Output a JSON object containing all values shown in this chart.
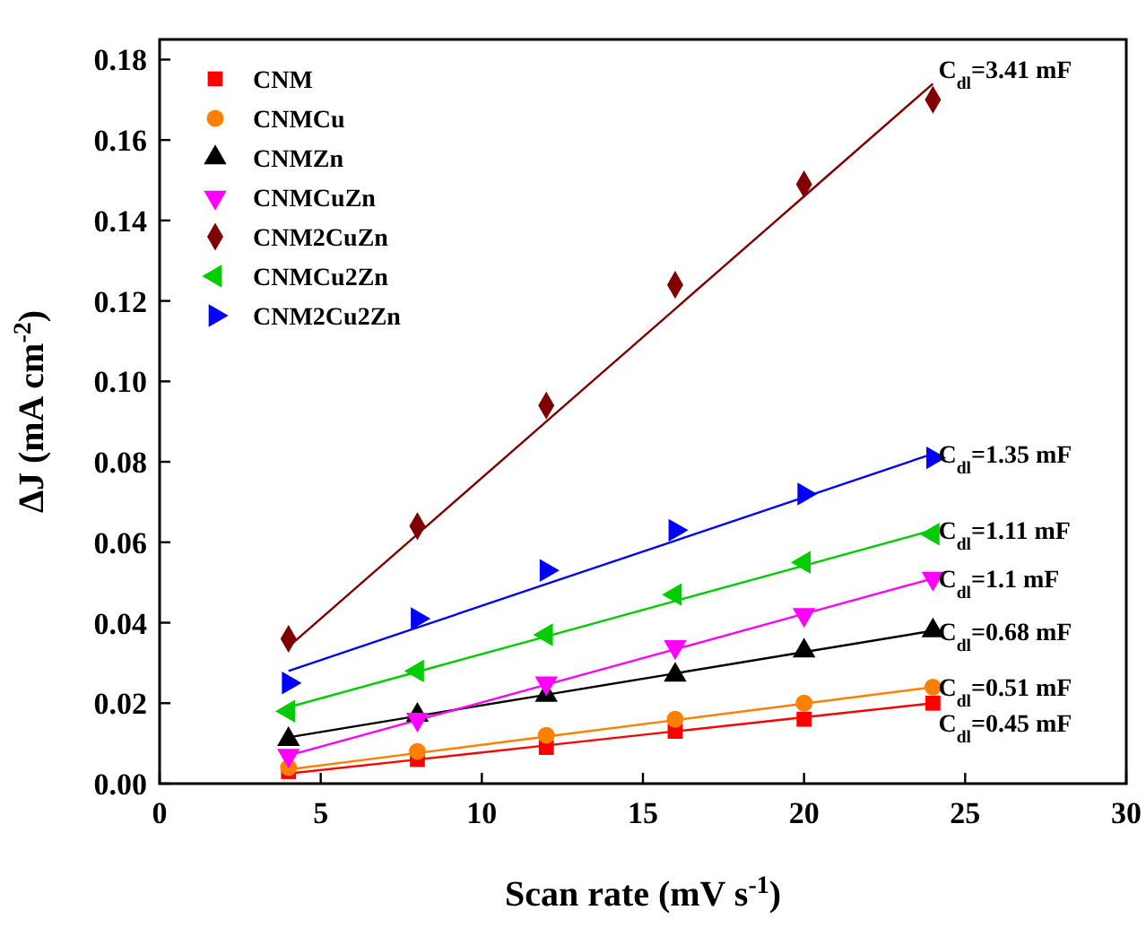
{
  "chart_data": {
    "type": "scatter",
    "xlabel": "Scan rate (mV s$^{-1}$)",
    "ylabel": "ΔJ (mA cm$^{-2}$)",
    "x": [
      4,
      8,
      12,
      16,
      20,
      24
    ],
    "xlim": [
      0,
      30
    ],
    "xticks": [
      0,
      5,
      10,
      15,
      20,
      25,
      30
    ],
    "ylim": [
      0,
      0.185
    ],
    "yticks": [
      {
        "value": 0,
        "label": "0.00"
      },
      {
        "value": 0.02,
        "label": "0.02"
      },
      {
        "value": 0.04,
        "label": "0.04"
      },
      {
        "value": 0.06,
        "label": "0.06"
      },
      {
        "value": 0.08,
        "label": "0.08"
      },
      {
        "value": 0.1,
        "label": "0.10"
      },
      {
        "value": 0.12,
        "label": "0.12"
      },
      {
        "value": 0.14,
        "label": "0.14"
      },
      {
        "value": 0.16,
        "label": "0.16"
      },
      {
        "value": 0.18,
        "label": "0.18"
      }
    ],
    "legend": "top left",
    "grid": false,
    "series": [
      {
        "name": "CNM",
        "color": "#ff0000",
        "marker": "square",
        "values": [
          0.003,
          0.006,
          0.009,
          0.013,
          0.016,
          0.02
        ]
      },
      {
        "name": "CNMCu",
        "color": "#ff8000",
        "marker": "circle",
        "values": [
          0.004,
          0.008,
          0.012,
          0.016,
          0.02,
          0.024
        ]
      },
      {
        "name": "CNMZn",
        "color": "#000000",
        "marker": "triangle",
        "values": [
          0.011,
          0.017,
          0.022,
          0.027,
          0.033,
          0.038
        ]
      },
      {
        "name": "CNMCuZn",
        "color": "#ff00ff",
        "marker": "triangle-down",
        "values": [
          0.007,
          0.016,
          0.025,
          0.034,
          0.042,
          0.051
        ]
      },
      {
        "name": "CNM2CuZn",
        "color": "#800000",
        "marker": "diamond",
        "values": [
          0.036,
          0.064,
          0.094,
          0.124,
          0.149,
          0.17
        ]
      },
      {
        "name": "CNMCu2Zn",
        "color": "#00cc00",
        "marker": "triangle-left",
        "values": [
          0.018,
          0.028,
          0.037,
          0.047,
          0.055,
          0.062
        ]
      },
      {
        "name": "CNM2Cu2Zn",
        "color": "#0000ff",
        "marker": "triangle-right",
        "values": [
          0.025,
          0.041,
          0.053,
          0.063,
          0.072,
          0.081
        ]
      },
      {
        "type": "line",
        "color": "#ff0000",
        "values": [
          0.0025,
          0.006,
          0.0095,
          0.013,
          0.0165,
          0.02
        ]
      },
      {
        "type": "line",
        "color": "#ff8000",
        "values": [
          0.0035,
          0.0076,
          0.0117,
          0.0158,
          0.0199,
          0.024
        ]
      },
      {
        "type": "line",
        "color": "#000000",
        "values": [
          0.0115,
          0.0168,
          0.0221,
          0.0274,
          0.0327,
          0.038
        ]
      },
      {
        "type": "line",
        "color": "#ff00ff",
        "values": [
          0.007,
          0.0158,
          0.0246,
          0.0334,
          0.0422,
          0.051
        ]
      },
      {
        "type": "line",
        "color": "#800000",
        "values": [
          0.034,
          0.062,
          0.09,
          0.118,
          0.146,
          0.174
        ]
      },
      {
        "type": "line",
        "color": "#00cc00",
        "values": [
          0.019,
          0.0278,
          0.0366,
          0.0454,
          0.0542,
          0.063
        ]
      },
      {
        "type": "line",
        "color": "#0000ff",
        "values": [
          0.028,
          0.0388,
          0.0496,
          0.0604,
          0.0712,
          0.082
        ]
      }
    ],
    "annotations": [
      "C$_{dl}$=3.41 mF",
      "C$_{dl}$=1.35 mF",
      "C$_{dl}$=1.11 mF",
      "C$_{dl}$=1.1 mF",
      "C$_{dl}$=0.68 mF",
      "C$_{dl}$=0.51 mF",
      "C$_{dl}$=0.45 mF"
    ]
  }
}
